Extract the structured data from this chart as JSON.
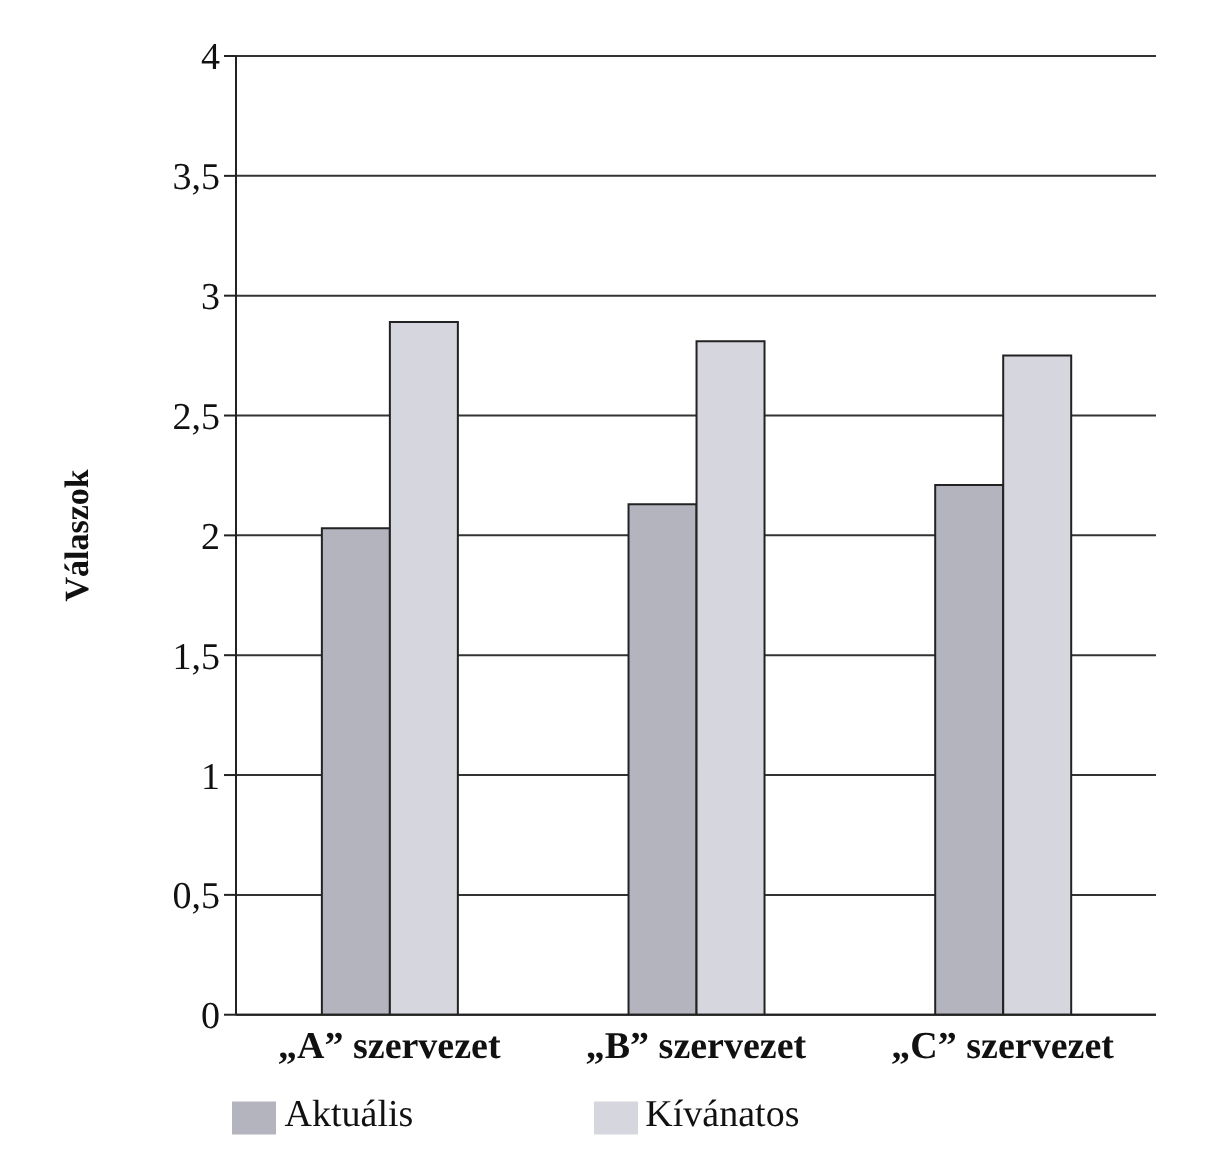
{
  "chart_data": {
    "type": "bar",
    "ylabel": "Válaszok",
    "categories": [
      "„A” szervezet",
      "„B” szervezet",
      "„C” szervezet"
    ],
    "series": [
      {
        "name": "Aktuális",
        "color": "#b4b4be",
        "values": [
          2.03,
          2.13,
          2.21
        ]
      },
      {
        "name": "Kívánatos",
        "color": "#d6d6de",
        "values": [
          2.89,
          2.81,
          2.75
        ]
      }
    ],
    "ylim": [
      0,
      4
    ],
    "yticks": [
      0,
      {
        "value": 0.5,
        "label": "0,5"
      },
      1,
      {
        "value": 1.5,
        "label": "1,5"
      },
      2,
      {
        "value": 2.5,
        "label": "2,5"
      },
      3,
      {
        "value": 3.5,
        "label": "3,5"
      },
      4
    ],
    "grid": "y",
    "legend": "bottom"
  }
}
